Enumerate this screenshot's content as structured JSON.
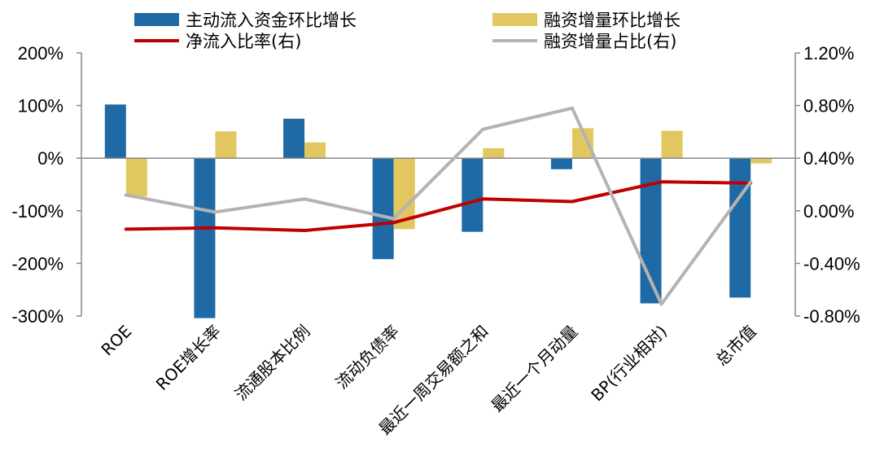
{
  "chart_data": {
    "type": "bar",
    "categories": [
      "ROE",
      "ROE增长率",
      "流通股本比例",
      "流动负债率",
      "最近一周交易额之和",
      "最近一个月动量",
      "BP(行业相对)",
      "总市值"
    ],
    "series": [
      {
        "name": "主动流入资金环比增长",
        "type": "bar",
        "axis": "left",
        "color": "#1f6aa5",
        "values": [
          102,
          -304,
          75,
          -192,
          -140,
          -21,
          -276,
          -265
        ]
      },
      {
        "name": "融资增量环比增长",
        "type": "bar",
        "axis": "left",
        "color": "#e2c760",
        "values": [
          -73,
          51,
          30,
          -135,
          19,
          57,
          52,
          -10
        ]
      },
      {
        "name": "净流入比率(右)",
        "type": "line",
        "axis": "right",
        "color": "#c00000",
        "values": [
          -0.14,
          -0.13,
          -0.15,
          -0.09,
          0.09,
          0.07,
          0.22,
          0.21
        ]
      },
      {
        "name": "融资增量占比(右)",
        "type": "line",
        "axis": "right",
        "color": "#b3b3b3",
        "values": [
          0.12,
          -0.01,
          0.09,
          -0.06,
          0.62,
          0.78,
          -0.71,
          0.22
        ]
      }
    ],
    "left_axis": {
      "min": -300,
      "max": 200,
      "ticks": [
        "200%",
        "100%",
        "0%",
        "-100%",
        "-200%",
        "-300%"
      ],
      "tick_values": [
        200,
        100,
        0,
        -100,
        -200,
        -300
      ]
    },
    "right_axis": {
      "min": -0.8,
      "max": 1.2,
      "ticks": [
        "1.20%",
        "0.80%",
        "0.40%",
        "0.00%",
        "-0.40%",
        "-0.80%"
      ],
      "tick_values": [
        1.2,
        0.8,
        0.4,
        0.0,
        -0.4,
        -0.8
      ]
    },
    "legend_position": "top",
    "grid": false
  }
}
